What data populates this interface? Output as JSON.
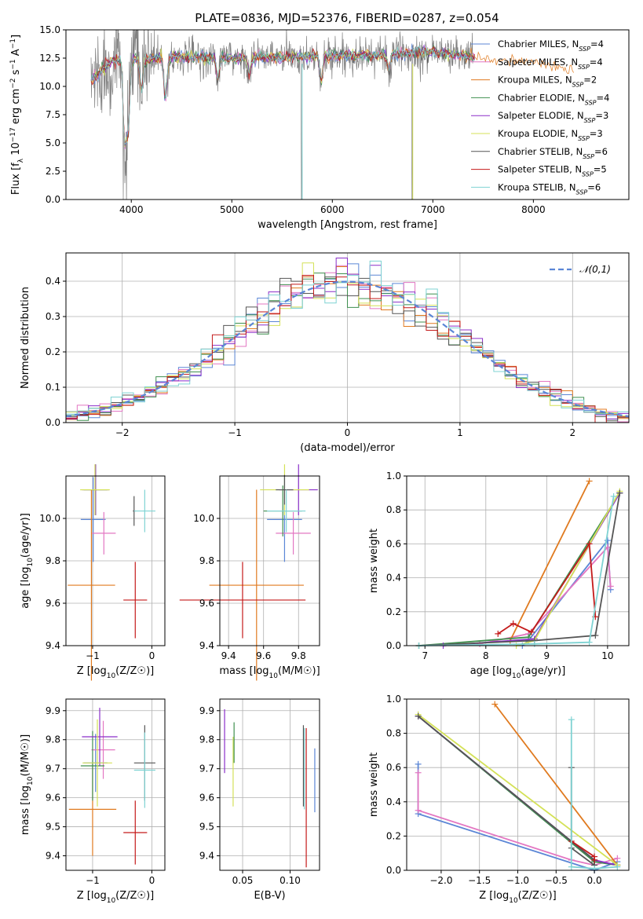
{
  "figure": {
    "title": "PLATE=0836, MJD=52376, FIBERID=0287, z=0.054"
  },
  "colors": {
    "Chabrier MILES": "#5b86d6",
    "Salpeter MILES": "#e377c2",
    "Kroupa MILES": "#e07a1f",
    "Chabrier ELODIE": "#3f8f4f",
    "Salpeter ELODIE": "#8b2fc9",
    "Kroupa ELODIE": "#d4e157",
    "Chabrier STELIB": "#555555",
    "Salpeter STELIB": "#c41a1a",
    "Kroupa STELIB": "#7fd3d3",
    "data": "#808080"
  },
  "chart_data": [
    {
      "id": "spectrum",
      "type": "line",
      "xlabel": "wavelength [Angstrom, rest frame]",
      "ylabel": "Flux [f_λ 10^-17 erg cm^-2 s^-1 A^-1]",
      "xlim": [
        3350,
        8950
      ],
      "ylim": [
        0,
        15
      ],
      "xticks": [
        4000,
        5000,
        6000,
        7000,
        8000
      ],
      "yticks": [
        0.0,
        2.5,
        5.0,
        7.5,
        10.0,
        12.5,
        15.0
      ],
      "grid": false,
      "legend_position": "right",
      "data_range_x": [
        3600,
        7400
      ],
      "model_range_x": [
        3600,
        8400
      ],
      "continuum_points": [
        [
          3600,
          10.5
        ],
        [
          3800,
          12.2
        ],
        [
          4000,
          12.4
        ],
        [
          4500,
          12.6
        ],
        [
          5000,
          12.5
        ],
        [
          5500,
          12.6
        ],
        [
          6000,
          12.7
        ],
        [
          6500,
          12.8
        ],
        [
          7000,
          13.1
        ],
        [
          7400,
          12.6
        ],
        [
          8000,
          12.0
        ],
        [
          8400,
          11.5
        ]
      ],
      "series": [
        {
          "name": "Chabrier MILES",
          "nssp": "4",
          "key": "Chabrier MILES"
        },
        {
          "name": "Salpeter MILES",
          "nssp": "4",
          "key": "Salpeter MILES"
        },
        {
          "name": "Kroupa MILES",
          "nssp": "2",
          "key": "Kroupa MILES"
        },
        {
          "name": "Chabrier ELODIE",
          "nssp": "4",
          "key": "Chabrier ELODIE"
        },
        {
          "name": "Salpeter ELODIE",
          "nssp": "3",
          "key": "Salpeter ELODIE"
        },
        {
          "name": "Kroupa ELODIE",
          "nssp": "3",
          "key": "Kroupa ELODIE"
        },
        {
          "name": "Chabrier STELIB",
          "nssp": "6",
          "key": "Chabrier STELIB"
        },
        {
          "name": "Salpeter STELIB",
          "nssp": "5",
          "key": "Salpeter STELIB"
        },
        {
          "name": "Kroupa STELIB",
          "nssp": "6",
          "key": "Kroupa STELIB"
        }
      ]
    },
    {
      "id": "residuals",
      "type": "line",
      "xlabel": "(data-model)/error",
      "ylabel": "Normed distribution",
      "xlim": [
        -2.5,
        2.5
      ],
      "ylim": [
        0,
        0.48
      ],
      "xticks": [
        -2,
        -1,
        0,
        1,
        2
      ],
      "yticks": [
        0.0,
        0.1,
        0.2,
        0.3,
        0.4
      ],
      "grid": true,
      "legend": "𝒩(0,1)",
      "legend_position": "top-right",
      "bin_range": [
        -2.5,
        2.5
      ],
      "bins": 50
    },
    {
      "id": "age_vs_Z",
      "type": "scatter",
      "xlabel": "Z [log10(Z/Z☉)]",
      "ylabel": "age [log10(age/yr)]",
      "xlim": [
        -1.45,
        0.22
      ],
      "ylim": [
        9.4,
        10.2
      ],
      "xticks": [
        -1,
        0
      ],
      "yticks": [
        9.4,
        9.6,
        9.8,
        10.0
      ],
      "grid": true,
      "points": [
        {
          "key": "Chabrier MILES",
          "x": -0.99,
          "y": 9.995,
          "xe": 0.21,
          "ye": 0.2
        },
        {
          "key": "Salpeter MILES",
          "x": -0.81,
          "y": 9.93,
          "xe": 0.2,
          "ye": 0.1
        },
        {
          "key": "Kroupa MILES",
          "x": -1.02,
          "y": 9.685,
          "xe": 0.4,
          "ye": 0.45
        },
        {
          "key": "Chabrier ELODIE",
          "x": -0.95,
          "y": 10.135,
          "xe": 0.2,
          "ye": 0.12
        },
        {
          "key": "Salpeter ELODIE",
          "x": -0.95,
          "y": 10.135,
          "xe": 0.23,
          "ye": 0.12
        },
        {
          "key": "Kroupa ELODIE",
          "x": -0.96,
          "y": 10.135,
          "xe": 0.25,
          "ye": 0.12
        },
        {
          "key": "Chabrier STELIB",
          "x": -0.3,
          "y": 10.035,
          "xe": 0.02,
          "ye": 0.07
        },
        {
          "key": "Salpeter STELIB",
          "x": -0.28,
          "y": 9.615,
          "xe": 0.2,
          "ye": 0.18
        },
        {
          "key": "Kroupa STELIB",
          "x": -0.12,
          "y": 10.035,
          "xe": 0.18,
          "ye": 0.1
        }
      ]
    },
    {
      "id": "age_vs_mass",
      "type": "scatter",
      "xlabel": "mass [log10(M/M☉)]",
      "ylabel": "",
      "xlim": [
        9.35,
        9.92
      ],
      "ylim": [
        9.4,
        10.2
      ],
      "xticks": [
        9.4,
        9.6,
        9.8
      ],
      "yticks": [
        9.4,
        9.6,
        9.8,
        10.0
      ],
      "grid": true,
      "points": [
        {
          "key": "Chabrier MILES",
          "x": 9.72,
          "y": 9.995,
          "xe": 0.1,
          "ye": 0.2
        },
        {
          "key": "Salpeter MILES",
          "x": 9.77,
          "y": 9.93,
          "xe": 0.1,
          "ye": 0.1
        },
        {
          "key": "Kroupa MILES",
          "x": 9.56,
          "y": 9.685,
          "xe": 0.27,
          "ye": 0.45
        },
        {
          "key": "Chabrier ELODIE",
          "x": 9.71,
          "y": 10.035,
          "xe": 0.11,
          "ye": 0.12
        },
        {
          "key": "Salpeter ELODIE",
          "x": 9.8,
          "y": 10.135,
          "xe": 0.11,
          "ye": 0.12
        },
        {
          "key": "Kroupa ELODIE",
          "x": 9.72,
          "y": 10.135,
          "xe": 0.14,
          "ye": 0.12
        },
        {
          "key": "Chabrier STELIB",
          "x": 9.72,
          "y": 10.135,
          "xe": 0.05,
          "ye": 0.07
        },
        {
          "key": "Salpeter STELIB",
          "x": 9.48,
          "y": 9.615,
          "xe": 0.36,
          "ye": 0.18
        },
        {
          "key": "Kroupa STELIB",
          "x": 9.73,
          "y": 10.035,
          "xe": 0.11,
          "ye": 0.1
        }
      ]
    },
    {
      "id": "massweight_vs_age",
      "type": "line",
      "xlabel": "age [log10(age/yr)]",
      "ylabel": "mass weight",
      "xlim": [
        6.7,
        10.35
      ],
      "ylim": [
        0,
        1.0
      ],
      "xticks": [
        7,
        8,
        9,
        10
      ],
      "yticks": [
        0.0,
        0.2,
        0.4,
        0.6,
        0.8,
        1.0
      ],
      "grid": true,
      "series": [
        {
          "key": "Chabrier MILES",
          "x": [
            8.6,
            8.7,
            10.0,
            10.05
          ],
          "y": [
            0.0,
            0.03,
            0.62,
            0.33
          ]
        },
        {
          "key": "Salpeter MILES",
          "x": [
            7.9,
            8.7,
            10.0,
            10.05
          ],
          "y": [
            0.01,
            0.07,
            0.58,
            0.35
          ]
        },
        {
          "key": "Kroupa MILES",
          "x": [
            8.4,
            9.7
          ],
          "y": [
            0.03,
            0.97
          ]
        },
        {
          "key": "Chabrier ELODIE",
          "x": [
            6.9,
            8.7,
            10.2
          ],
          "y": [
            0.0,
            0.05,
            0.9
          ]
        },
        {
          "key": "Salpeter ELODIE",
          "x": [
            7.3,
            8.8,
            10.2
          ],
          "y": [
            0.0,
            0.04,
            0.9
          ]
        },
        {
          "key": "Kroupa ELODIE",
          "x": [
            8.5,
            8.8,
            10.2
          ],
          "y": [
            0.0,
            0.03,
            0.91
          ]
        },
        {
          "key": "Chabrier STELIB",
          "x": [
            6.9,
            8.8,
            9.8,
            10.2
          ],
          "y": [
            0.0,
            0.03,
            0.06,
            0.9
          ]
        },
        {
          "key": "Salpeter STELIB",
          "x": [
            8.2,
            8.45,
            8.75,
            9.7,
            9.8
          ],
          "y": [
            0.07,
            0.13,
            0.08,
            0.6,
            0.17
          ]
        },
        {
          "key": "Kroupa STELIB",
          "x": [
            6.9,
            8.8,
            9.7,
            10.1
          ],
          "y": [
            0.0,
            0.01,
            0.02,
            0.88
          ]
        }
      ]
    },
    {
      "id": "mass_vs_Z",
      "type": "scatter",
      "xlabel": "Z [log10(Z/Z☉)]",
      "ylabel": "mass [log10(M/M☉)]",
      "xlim": [
        -1.45,
        0.22
      ],
      "ylim": [
        9.35,
        9.94
      ],
      "xticks": [
        -1,
        0
      ],
      "yticks": [
        9.4,
        9.5,
        9.6,
        9.7,
        9.8,
        9.9
      ],
      "grid": true,
      "points": [
        {
          "key": "Chabrier MILES",
          "x": -0.95,
          "y": 9.72,
          "xe": 0.2,
          "ye": 0.1
        },
        {
          "key": "Salpeter MILES",
          "x": -0.82,
          "y": 9.765,
          "xe": 0.2,
          "ye": 0.1
        },
        {
          "key": "Kroupa MILES",
          "x": -1.0,
          "y": 9.56,
          "xe": 0.4,
          "ye": 0.16
        },
        {
          "key": "Chabrier ELODIE",
          "x": -1.0,
          "y": 9.71,
          "xe": 0.2,
          "ye": 0.12
        },
        {
          "key": "Salpeter ELODIE",
          "x": -0.88,
          "y": 9.81,
          "xe": 0.3,
          "ye": 0.1
        },
        {
          "key": "Kroupa ELODIE",
          "x": -0.92,
          "y": 9.72,
          "xe": 0.25,
          "ye": 0.15
        },
        {
          "key": "Chabrier STELIB",
          "x": -0.12,
          "y": 9.72,
          "xe": 0.18,
          "ye": 0.13
        },
        {
          "key": "Salpeter STELIB",
          "x": -0.28,
          "y": 9.48,
          "xe": 0.2,
          "ye": 0.11
        },
        {
          "key": "Kroupa STELIB",
          "x": -0.12,
          "y": 9.695,
          "xe": 0.18,
          "ye": 0.13
        }
      ]
    },
    {
      "id": "mass_vs_ebv",
      "type": "scatter",
      "xlabel": "E(B-V)",
      "ylabel": "",
      "xlim": [
        0.026,
        0.131
      ],
      "ylim": [
        9.35,
        9.94
      ],
      "xticks": [
        0.05,
        0.1
      ],
      "yticks": [
        9.4,
        9.5,
        9.6,
        9.7,
        9.8,
        9.9
      ],
      "grid": true,
      "points": [
        {
          "key": "Chabrier MILES",
          "x": 0.126,
          "y": 9.66,
          "xe": 0.0,
          "ye": 0.11
        },
        {
          "key": "Salpeter ELODIE",
          "x": 0.031,
          "y": 9.795,
          "xe": 0.0,
          "ye": 0.11
        },
        {
          "key": "Kroupa ELODIE",
          "x": 0.04,
          "y": 9.69,
          "xe": 0.0,
          "ye": 0.12
        },
        {
          "key": "Chabrier ELODIE",
          "x": 0.041,
          "y": 9.79,
          "xe": 0.0,
          "ye": 0.07
        },
        {
          "key": "Chabrier STELIB",
          "x": 0.114,
          "y": 9.71,
          "xe": 0.0,
          "ye": 0.14
        },
        {
          "key": "Kroupa STELIB",
          "x": 0.115,
          "y": 9.7,
          "xe": 0.0,
          "ye": 0.14
        },
        {
          "key": "Salpeter STELIB",
          "x": 0.117,
          "y": 9.6,
          "xe": 0.0,
          "ye": 0.24
        }
      ]
    },
    {
      "id": "massweight_vs_Z",
      "type": "line",
      "xlabel": "Z [log10(Z/Z☉)]",
      "ylabel": "mass weight",
      "xlim": [
        -2.45,
        0.45
      ],
      "ylim": [
        0,
        1.0
      ],
      "xticks": [
        -2.0,
        -1.5,
        -1.0,
        -0.5,
        0.0
      ],
      "yticks": [
        0.0,
        0.2,
        0.4,
        0.6,
        0.8,
        1.0
      ],
      "grid": true,
      "series": [
        {
          "key": "Chabrier MILES",
          "x": [
            -2.3,
            -2.3,
            0.0,
            0.3
          ],
          "y": [
            0.62,
            0.33,
            0.0,
            0.05
          ]
        },
        {
          "key": "Salpeter MILES",
          "x": [
            -2.3,
            -2.3,
            -0.3,
            0.0,
            0.3
          ],
          "y": [
            0.57,
            0.35,
            0.06,
            0.03,
            0.07
          ]
        },
        {
          "key": "Kroupa MILES",
          "x": [
            -1.3,
            0.3
          ],
          "y": [
            0.97,
            0.03
          ]
        },
        {
          "key": "Chabrier ELODIE",
          "x": [
            -2.3,
            0.0,
            0.3
          ],
          "y": [
            0.9,
            0.05,
            0.03
          ]
        },
        {
          "key": "Salpeter ELODIE",
          "x": [
            -2.3,
            0.0,
            0.3
          ],
          "y": [
            0.9,
            0.06,
            0.03
          ]
        },
        {
          "key": "Kroupa ELODIE",
          "x": [
            -2.3,
            0.3
          ],
          "y": [
            0.91,
            0.03
          ]
        },
        {
          "key": "Chabrier STELIB",
          "x": [
            -2.3,
            0.0,
            0.0,
            -0.3,
            -0.3
          ],
          "y": [
            0.9,
            0.06,
            0.03,
            0.13,
            0.6
          ]
        },
        {
          "key": "Salpeter STELIB",
          "x": [
            -0.3,
            0.0,
            0.0
          ],
          "y": [
            0.17,
            0.08,
            0.06
          ]
        },
        {
          "key": "Kroupa STELIB",
          "x": [
            -0.3,
            -0.3,
            0.0,
            0.3
          ],
          "y": [
            0.88,
            0.02,
            0.01,
            0.02
          ]
        }
      ]
    }
  ]
}
